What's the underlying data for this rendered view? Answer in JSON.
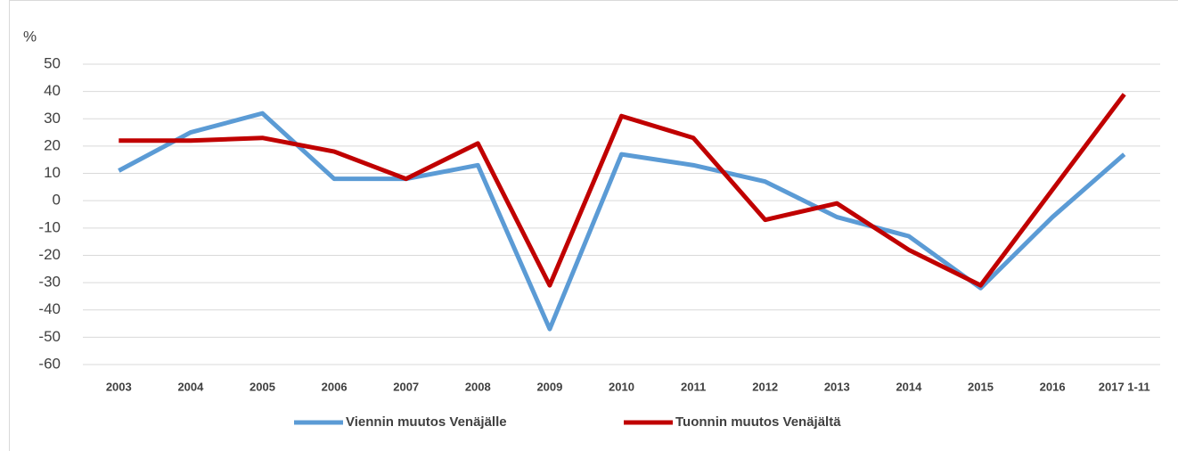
{
  "chart_data": {
    "type": "line",
    "y_unit_label": "%",
    "categories": [
      "2003",
      "2004",
      "2005",
      "2006",
      "2007",
      "2008",
      "2009",
      "2010",
      "2011",
      "2012",
      "2013",
      "2014",
      "2015",
      "2016",
      "2017 1-11"
    ],
    "series": [
      {
        "name": "Viennin muutos Venäjälle",
        "color": "#5b9bd5",
        "values": [
          11,
          25,
          32,
          8,
          8,
          13,
          -47,
          17,
          13,
          7,
          -6,
          -13,
          -32,
          -6,
          17
        ]
      },
      {
        "name": "Tuonnin muutos Venäjältä",
        "color": "#c00000",
        "values": [
          22,
          22,
          23,
          18,
          8,
          21,
          -31,
          31,
          23,
          -7,
          -1,
          -18,
          -31,
          4,
          39
        ]
      }
    ],
    "ylim": [
      -60,
      50
    ],
    "yticks": [
      -60,
      -50,
      -40,
      -30,
      -20,
      -10,
      0,
      10,
      20,
      30,
      40,
      50
    ],
    "grid": true,
    "legend": "bottom"
  }
}
